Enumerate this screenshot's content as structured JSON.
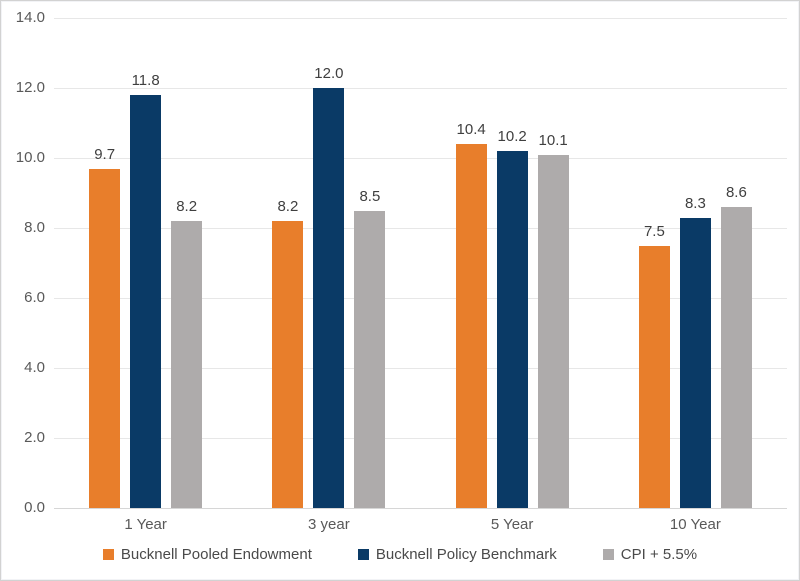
{
  "chart_data": {
    "type": "bar",
    "title": "",
    "xlabel": "",
    "ylabel": "",
    "categories": [
      "1 Year",
      "3 year",
      "5 Year",
      "10 Year"
    ],
    "series": [
      {
        "name": "Bucknell Pooled Endowment",
        "color": "#e87e2b",
        "values": [
          9.7,
          8.2,
          10.4,
          7.5
        ]
      },
      {
        "name": "Bucknell Policy Benchmark",
        "color": "#0a3a66",
        "values": [
          11.8,
          12.0,
          10.2,
          8.3
        ]
      },
      {
        "name": "CPI + 5.5%",
        "color": "#aeabab",
        "values": [
          8.2,
          8.5,
          10.1,
          8.6
        ]
      }
    ],
    "ylim": [
      0,
      14
    ],
    "ytick_step": 2,
    "ytick_labels": [
      "14.0",
      "12.0",
      "10.0",
      "8.0",
      "6.0",
      "4.0",
      "2.0",
      "0.0"
    ],
    "grid": true,
    "gridline_color": "#e7e7e7",
    "axis_line_color": "#d6d6d6",
    "axis_label_color": "#595959",
    "data_label_color": "#3f3f3f",
    "legend_position": "bottom",
    "value_label_decimals": 1
  }
}
